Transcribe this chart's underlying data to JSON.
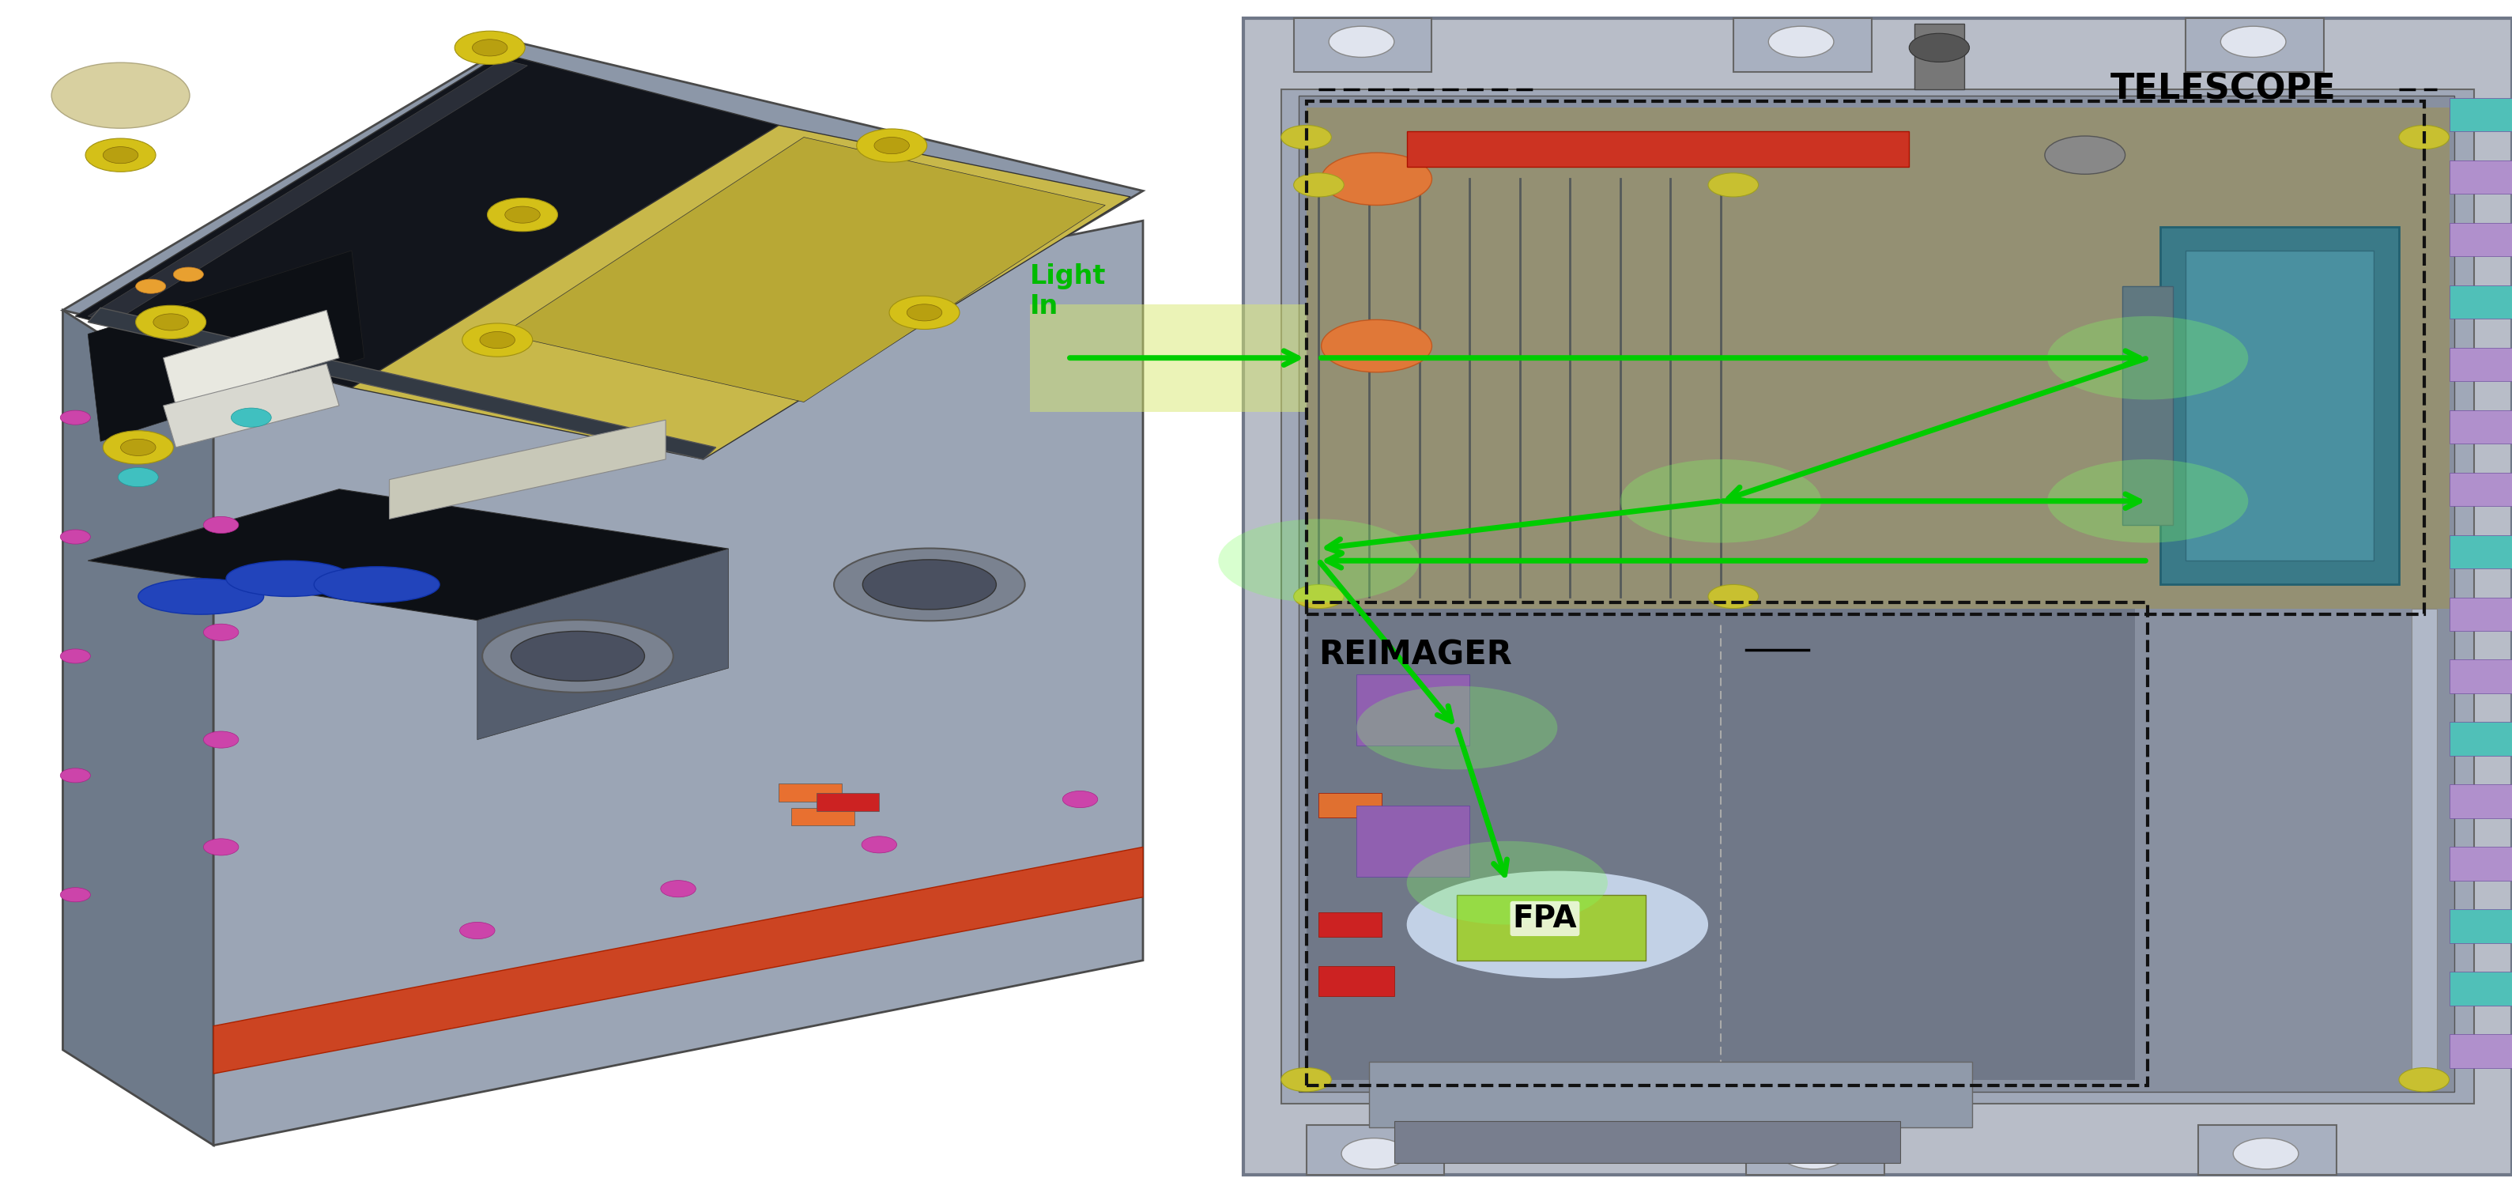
{
  "background_color": "#ffffff",
  "fig_width": 31.78,
  "fig_height": 15.09,
  "light_in_label": "Light\nIn",
  "light_in_color": "#00bb00",
  "telescope_label": "TELESCOPE",
  "reimager_label": "REIMAGER",
  "fpa_label": "FPA",
  "arrow_color": "#00cc00",
  "arrow_lw": 4.5,
  "arrow_ms": 30,
  "font_sizes": {
    "telescope": 32,
    "reimager": 30,
    "fpa": 28,
    "light_in": 24
  }
}
